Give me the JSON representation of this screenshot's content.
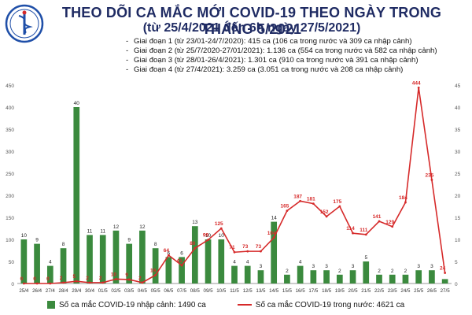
{
  "header": {
    "title": "THEO DÕI CA MẮC MỚI COVID-19 THEO NGÀY TRONG THÁNG 5/2021",
    "subtitle": "(từ 25/4/2021 đến 6h ngày 27/5/2021)",
    "logo_text": "BỘ Y TẾ",
    "logo_subtext": "MINISTRY OF HEALTH"
  },
  "phases": [
    "Giai đoạn 1 (từ 23/01-24/7/2020): 415 ca (106 ca trong nước và 309 ca nhập cảnh)",
    "Giai đoạn 2 (từ 25/7/2020-27/01/2021): 1.136 ca (554 ca trong nước và 582 ca nhập cảnh)",
    "Giai đoạn 3 (từ 28/01-26/4/2021): 1.301 ca (910 ca trong nước và 391 ca nhập cảnh)",
    "Giai đoạn 4 (từ 27/4/2021): 3.259 ca (3.051 ca trong nước và 208 ca nhập cảnh)"
  ],
  "legend": {
    "bar_label": "Số ca mắc COVID-19 nhập cảnh: 1490 ca",
    "line_label": "Số ca mắc COVID-19 trong nước: 4621 ca"
  },
  "colors": {
    "bar": "#3b8a3e",
    "line": "#d62a2a",
    "title": "#1f2b63",
    "grid": "#e6e6e6"
  },
  "chart_data": {
    "type": "bar+line",
    "categories": [
      "25/4",
      "26/4",
      "27/4",
      "28/4",
      "29/4",
      "30/4",
      "01/5",
      "02/5",
      "03/5",
      "04/5",
      "05/5",
      "06/5",
      "07/5",
      "08/5",
      "09/5",
      "10/5",
      "11/5",
      "12/5",
      "13/5",
      "14/5",
      "15/5",
      "16/5",
      "17/5",
      "18/5",
      "19/5",
      "20/5",
      "21/5",
      "22/5",
      "23/5",
      "24/5",
      "25/5",
      "26/5",
      "27/5"
    ],
    "series": [
      {
        "name": "Số ca mắc COVID-19 nhập cảnh: 1490 ca",
        "type": "bar",
        "axis": "right",
        "values": [
          10,
          9,
          4,
          8,
          40,
          11,
          11,
          12,
          9,
          12,
          8,
          6,
          6,
          13,
          10,
          10,
          4,
          4,
          3,
          14,
          2,
          4,
          3,
          3,
          2,
          3,
          5,
          2,
          2,
          2,
          3,
          3,
          1
        ],
        "labels": [
          "10",
          "9",
          "4",
          "8",
          "40",
          "11",
          "11",
          "12",
          "9",
          "12",
          "8",
          "6",
          "6",
          "13",
          "10",
          "10",
          "4",
          "4",
          "3",
          "14",
          "2",
          "4",
          "3",
          "3",
          "2",
          "3",
          "5",
          "2",
          "2",
          "2",
          "3",
          "3",
          ""
        ]
      },
      {
        "name": "Số ca mắc COVID-19 trong nước: 4621 ca",
        "type": "line",
        "axis": "left",
        "values": [
          0,
          0,
          0,
          2,
          5,
          2,
          2,
          10,
          9,
          2,
          19,
          64,
          41,
          80,
          99,
          125,
          71,
          73,
          73,
          104,
          165,
          187,
          181,
          152,
          175,
          114,
          111,
          141,
          129,
          184,
          444,
          235,
          24
        ],
        "labels": [
          "0",
          "0",
          "0",
          "2",
          "5",
          "2",
          "2",
          "10",
          "9",
          "2",
          "19",
          "64",
          "41",
          "80",
          "99",
          "125",
          "71",
          "73",
          "73",
          "104",
          "165",
          "187",
          "181",
          "152",
          "175",
          "114",
          "111",
          "141",
          "129",
          "184",
          "444",
          "235",
          "24"
        ]
      }
    ],
    "y_left": {
      "min": 0,
      "max": 450,
      "ticks": [
        0,
        50,
        100,
        150,
        200,
        250,
        300,
        350,
        400,
        450
      ]
    },
    "y_right": {
      "min": 0,
      "max": 45,
      "ticks": [
        0,
        5,
        10,
        15,
        20,
        25,
        30,
        35,
        40,
        45
      ]
    },
    "legend_position": "bottom",
    "grid": false
  }
}
